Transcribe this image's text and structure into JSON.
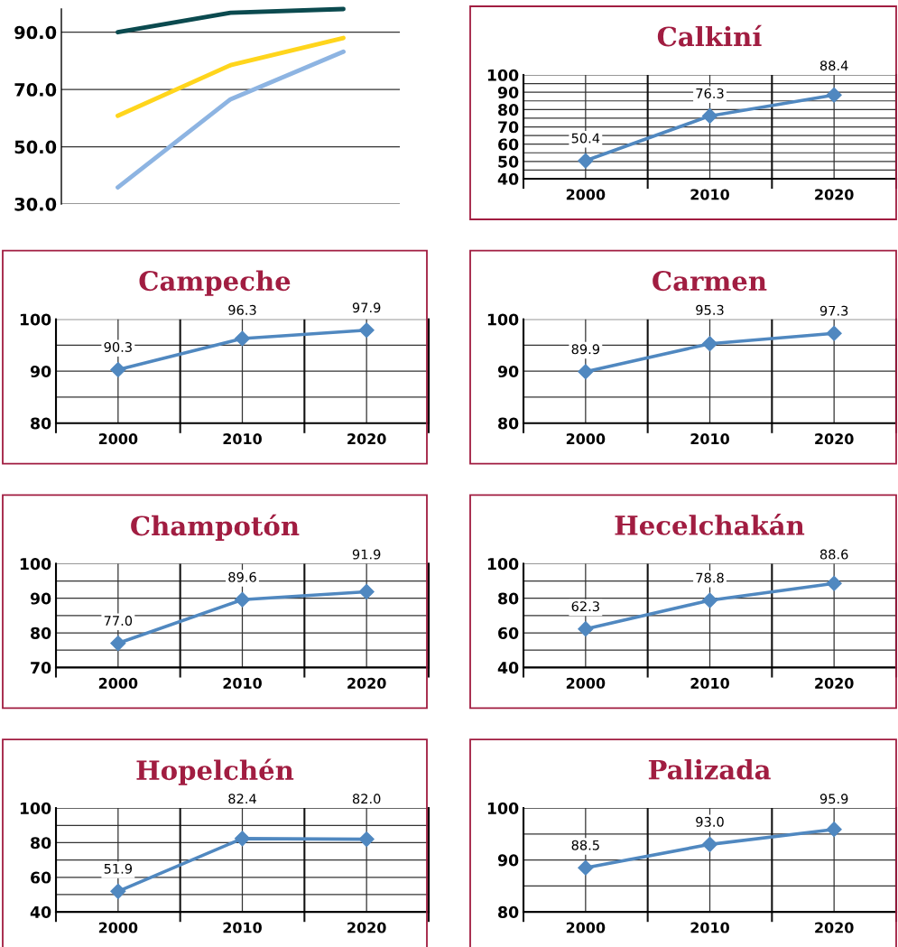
{
  "chart_data": [
    {
      "type": "line",
      "categories": [
        null,
        null,
        null
      ],
      "series": [
        {
          "color": "#0b4a4f",
          "values": [
            90.0,
            96.8,
            98.1
          ]
        },
        {
          "color": "#ffd51c",
          "values": [
            60.8,
            78.5,
            88.0
          ]
        },
        {
          "color": "#8db4e2",
          "values": [
            35.8,
            66.6,
            83.2
          ]
        }
      ],
      "ylim": [
        30,
        98.1
      ],
      "yticks": [
        {
          "value": 30,
          "label": "30.0"
        },
        {
          "value": 50,
          "label": "50.0"
        },
        {
          "value": 70,
          "label": "70.0"
        },
        {
          "value": 90,
          "label": "90.0"
        }
      ],
      "tick_labels": "y",
      "grid": "y",
      "marker": "none"
    },
    {
      "type": "line",
      "title": "Calkiní",
      "categories": [
        "2000",
        "2010",
        "2020"
      ],
      "series": [
        {
          "color": "#5088c0",
          "values": [
            50.4,
            76.3,
            88.4
          ],
          "value_labels": [
            "50.4",
            "76.3",
            "88.4"
          ]
        }
      ],
      "ylim": [
        40,
        100
      ],
      "yticks": [
        40,
        {
          "value": 45,
          "label": null
        },
        50,
        {
          "value": 55,
          "label": null
        },
        60,
        {
          "value": 65,
          "label": null
        },
        70,
        {
          "value": 75,
          "label": null
        },
        80,
        {
          "value": 85,
          "label": null
        },
        90,
        {
          "value": 95,
          "label": null
        },
        100
      ],
      "grid": true,
      "marker": "diamond"
    },
    {
      "type": "line",
      "title": "Campeche",
      "categories": [
        "2000",
        "2010",
        "2020"
      ],
      "series": [
        {
          "color": "#5088c0",
          "values": [
            90.3,
            96.3,
            97.9
          ],
          "value_labels": [
            "90.3",
            "96.3",
            "97.9"
          ]
        }
      ],
      "ylim": [
        80,
        100
      ],
      "yticks": [
        80,
        {
          "value": 85,
          "label": null
        },
        90,
        {
          "value": 95,
          "label": null
        },
        100
      ],
      "grid": true,
      "marker": "diamond"
    },
    {
      "type": "line",
      "title": "Carmen",
      "categories": [
        "2000",
        "2010",
        "2020"
      ],
      "series": [
        {
          "color": "#5088c0",
          "values": [
            89.9,
            95.3,
            97.3
          ],
          "value_labels": [
            "89.9",
            "95.3",
            "97.3"
          ]
        }
      ],
      "ylim": [
        80,
        100
      ],
      "yticks": [
        80,
        {
          "value": 85,
          "label": null
        },
        90,
        {
          "value": 95,
          "label": null
        },
        100
      ],
      "grid": true,
      "marker": "diamond"
    },
    {
      "type": "line",
      "title": "Champotón",
      "categories": [
        "2000",
        "2010",
        "2020"
      ],
      "series": [
        {
          "color": "#5088c0",
          "values": [
            77.0,
            89.6,
            91.9
          ],
          "value_labels": [
            "77.0",
            "89.6",
            "91.9"
          ]
        }
      ],
      "ylim": [
        70,
        100
      ],
      "yticks": [
        70,
        {
          "value": 75,
          "label": null
        },
        80,
        {
          "value": 85,
          "label": null
        },
        90,
        {
          "value": 95,
          "label": null
        },
        100
      ],
      "grid": true,
      "marker": "diamond"
    },
    {
      "type": "line",
      "title": "Hecelchakán",
      "categories": [
        "2000",
        "2010",
        "2020"
      ],
      "series": [
        {
          "color": "#5088c0",
          "values": [
            62.3,
            78.8,
            88.6
          ],
          "value_labels": [
            "62.3",
            "78.8",
            "88.6"
          ]
        }
      ],
      "ylim": [
        40,
        100
      ],
      "yticks": [
        40,
        {
          "value": 50,
          "label": null
        },
        60,
        {
          "value": 70,
          "label": null
        },
        80,
        {
          "value": 90,
          "label": null
        },
        100
      ],
      "grid": true,
      "marker": "diamond"
    },
    {
      "type": "line",
      "title": "Hopelchén",
      "categories": [
        "2000",
        "2010",
        "2020"
      ],
      "series": [
        {
          "color": "#5088c0",
          "values": [
            51.9,
            82.4,
            82.0
          ],
          "value_labels": [
            "51.9",
            "82.4",
            "82.0"
          ]
        }
      ],
      "ylim": [
        40,
        100
      ],
      "yticks": [
        40,
        {
          "value": 50,
          "label": null
        },
        60,
        {
          "value": 70,
          "label": null
        },
        80,
        {
          "value": 90,
          "label": null
        },
        100
      ],
      "grid": true,
      "marker": "diamond"
    },
    {
      "type": "line",
      "title": "Palizada",
      "categories": [
        "2000",
        "2010",
        "2020"
      ],
      "series": [
        {
          "color": "#5088c0",
          "values": [
            88.5,
            93.0,
            95.9
          ],
          "value_labels": [
            "88.5",
            "93.0",
            "95.9"
          ]
        }
      ],
      "ylim": [
        80,
        100
      ],
      "yticks": [
        80,
        {
          "value": 85,
          "label": null
        },
        90,
        {
          "value": 95,
          "label": null
        },
        100
      ],
      "grid": true,
      "marker": "diamond"
    }
  ]
}
